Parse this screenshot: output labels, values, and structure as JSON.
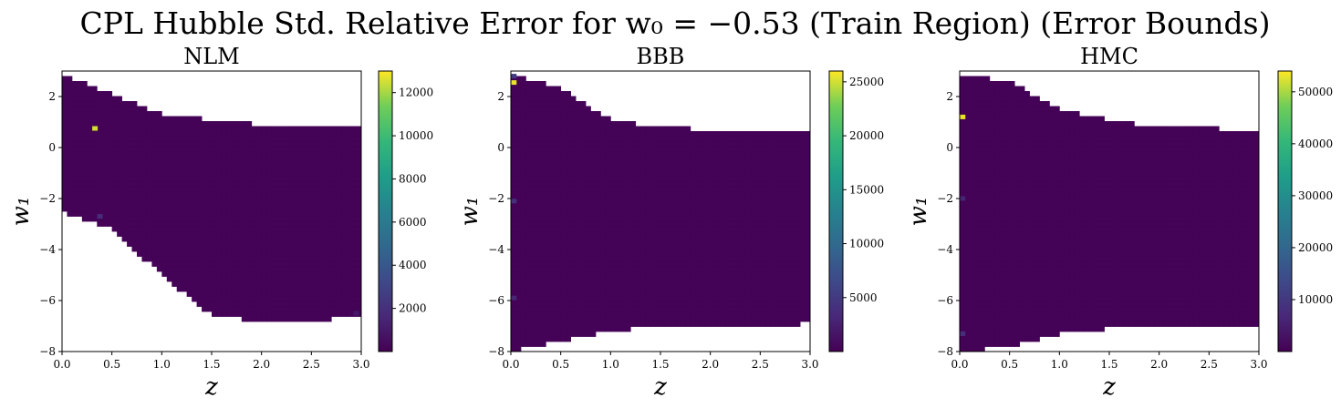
{
  "title": "CPL Hubble Std. Relative Error for w₀ = −0.53 (Train Region) (Error Bounds)",
  "chart_data": [
    {
      "type": "heatmap",
      "title": "NLM",
      "xlabel": "z",
      "ylabel": "w₁",
      "xlim": [
        0.0,
        3.0
      ],
      "ylim": [
        -8,
        3
      ],
      "xticks": [
        "0.0",
        "0.5",
        "1.0",
        "1.5",
        "2.0",
        "2.5",
        "3.0"
      ],
      "yticks": [
        "−8",
        "−6",
        "−4",
        "−2",
        "0",
        "2"
      ],
      "colorbar": {
        "min": 0,
        "max": 13000,
        "ticks": [
          "2000",
          "4000",
          "6000",
          "8000",
          "10000",
          "12000"
        ],
        "tick_values": [
          2000,
          4000,
          6000,
          8000,
          10000,
          12000
        ]
      },
      "region": {
        "z": [
          0.0,
          0.5,
          1.0,
          1.5,
          2.0,
          2.5,
          3.0
        ],
        "w1_upper": [
          2.9,
          2.1,
          1.3,
          1.1,
          0.9,
          0.85,
          0.85
        ],
        "w1_lower": [
          -2.5,
          -3.2,
          -5.0,
          -6.6,
          -6.8,
          -6.8,
          -6.6
        ]
      },
      "background_value": 100,
      "outliers": [
        {
          "z": 0.33,
          "w1": 0.75,
          "value": 12500
        },
        {
          "z": 0.38,
          "w1": -2.7,
          "value": 1800
        },
        {
          "z": 2.95,
          "w1": -6.5,
          "value": 900
        }
      ]
    },
    {
      "type": "heatmap",
      "title": "BBB",
      "xlabel": "z",
      "ylabel": "w₁",
      "xlim": [
        0.0,
        3.0
      ],
      "ylim": [
        -8,
        3
      ],
      "xticks": [
        "0.0",
        "0.5",
        "1.0",
        "1.5",
        "2.0",
        "2.5",
        "3.0"
      ],
      "yticks": [
        "−8",
        "−6",
        "−4",
        "−2",
        "0",
        "2"
      ],
      "colorbar": {
        "min": 0,
        "max": 26000,
        "ticks": [
          "5000",
          "10000",
          "15000",
          "20000",
          "25000"
        ],
        "tick_values": [
          5000,
          10000,
          15000,
          20000,
          25000
        ]
      },
      "region": {
        "z": [
          0.0,
          0.5,
          1.0,
          1.5,
          2.0,
          2.5,
          3.0
        ],
        "w1_upper": [
          2.9,
          2.3,
          1.1,
          0.8,
          0.7,
          0.7,
          0.65
        ],
        "w1_lower": [
          -8.0,
          -7.6,
          -7.2,
          -7.0,
          -7.0,
          -7.0,
          -6.9
        ]
      },
      "background_value": 200,
      "outliers": [
        {
          "z": 0.03,
          "w1": 2.55,
          "value": 25500
        },
        {
          "z": 0.03,
          "w1": 2.8,
          "value": 5000
        },
        {
          "z": 0.03,
          "w1": -2.1,
          "value": 4000
        },
        {
          "z": 0.03,
          "w1": -5.9,
          "value": 3000
        }
      ]
    },
    {
      "type": "heatmap",
      "title": "HMC",
      "xlabel": "z",
      "ylabel": "w₁",
      "xlim": [
        0.0,
        3.0
      ],
      "ylim": [
        -8,
        3
      ],
      "xticks": [
        "0.0",
        "0.5",
        "1.0",
        "1.5",
        "2.0",
        "2.5",
        "3.0"
      ],
      "yticks": [
        "−8",
        "−6",
        "−4",
        "−2",
        "0",
        "2"
      ],
      "colorbar": {
        "min": 0,
        "max": 54000,
        "ticks": [
          "10000",
          "20000",
          "30000",
          "40000",
          "50000"
        ],
        "tick_values": [
          10000,
          20000,
          30000,
          40000,
          50000
        ]
      },
      "region": {
        "z": [
          0.0,
          0.5,
          1.0,
          1.5,
          2.0,
          2.5,
          3.0
        ],
        "w1_upper": [
          2.9,
          2.6,
          1.5,
          1.1,
          0.8,
          0.75,
          0.7
        ],
        "w1_lower": [
          -8.0,
          -7.8,
          -7.3,
          -7.1,
          -7.0,
          -7.0,
          -7.0
        ]
      },
      "background_value": 300,
      "outliers": [
        {
          "z": 0.03,
          "w1": 1.2,
          "value": 53000
        },
        {
          "z": 0.03,
          "w1": -2.0,
          "value": 6000
        },
        {
          "z": 0.03,
          "w1": -7.3,
          "value": 8000
        }
      ]
    }
  ]
}
